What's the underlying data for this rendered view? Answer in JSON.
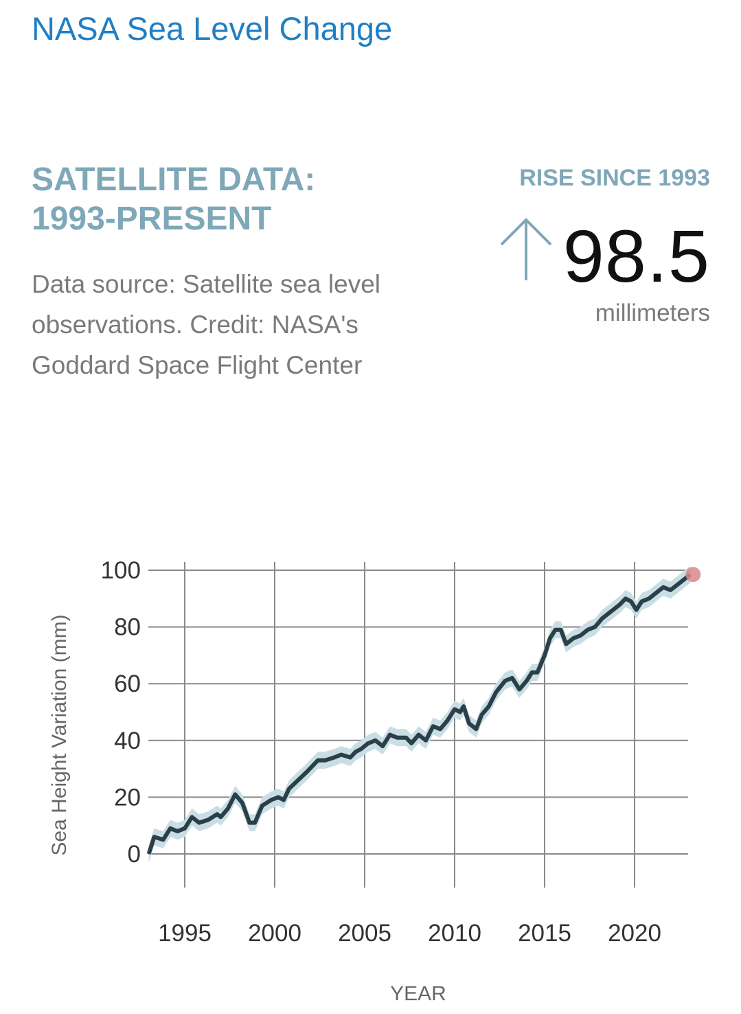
{
  "header": {
    "title": "NASA Sea Level Change"
  },
  "section": {
    "title_line1": "SATELLITE DATA:",
    "title_line2": "1993-PRESENT",
    "description": "Data source: Satellite sea level observations. Credit: NASA's Goddard Space Flight Center"
  },
  "rise": {
    "label": "RISE SINCE 1993",
    "value": "98.5",
    "unit": "millimeters",
    "icon": "arrow-up-icon"
  },
  "colors": {
    "title": "#1f7fc5",
    "accent": "#7ea8b7",
    "line": "#2a3f47",
    "band": "#c9dde5",
    "marker": "#d9868a"
  },
  "chart_data": {
    "type": "line",
    "xlabel": "YEAR",
    "ylabel": "Sea Height Variation (mm)",
    "xlim": [
      1993,
      2023.1
    ],
    "ylim": [
      0,
      100
    ],
    "xticks": [
      1995,
      2000,
      2005,
      2010,
      2015,
      2020
    ],
    "yticks": [
      0,
      20,
      40,
      60,
      80,
      100
    ],
    "grid": true,
    "uncertainty_mm": 3,
    "series": [
      {
        "name": "Sea Height Variation",
        "x": [
          1993.0,
          1993.3,
          1993.8,
          1994.2,
          1994.6,
          1995.0,
          1995.4,
          1995.8,
          1996.3,
          1996.8,
          1997.0,
          1997.4,
          1997.8,
          1998.2,
          1998.6,
          1998.9,
          1999.3,
          1999.8,
          2000.2,
          2000.5,
          2000.8,
          2001.3,
          2001.8,
          2002.4,
          2002.8,
          2003.3,
          2003.7,
          2004.2,
          2004.5,
          2004.8,
          2005.2,
          2005.6,
          2006.0,
          2006.4,
          2006.8,
          2007.3,
          2007.6,
          2008.0,
          2008.4,
          2008.8,
          2009.2,
          2009.6,
          2010.0,
          2010.3,
          2010.5,
          2010.8,
          2011.2,
          2011.5,
          2011.9,
          2012.3,
          2012.8,
          2013.2,
          2013.6,
          2014.0,
          2014.3,
          2014.6,
          2015.0,
          2015.3,
          2015.6,
          2015.9,
          2016.2,
          2016.6,
          2017.0,
          2017.4,
          2017.8,
          2018.2,
          2018.6,
          2019.2,
          2019.5,
          2019.8,
          2020.1,
          2020.4,
          2020.8,
          2021.2,
          2021.6,
          2022.0,
          2022.4,
          2022.8,
          2023.1
        ],
        "y": [
          0,
          6,
          5,
          9,
          8,
          9,
          13,
          11,
          12,
          14,
          13,
          16,
          21,
          18,
          11,
          11,
          17,
          19,
          20,
          19,
          23,
          26,
          29,
          33,
          33,
          34,
          35,
          34,
          36,
          37,
          39,
          40,
          38,
          42,
          41,
          41,
          39,
          42,
          40,
          45,
          44,
          47,
          51,
          50,
          52,
          46,
          44,
          49,
          52,
          57,
          61,
          62,
          58,
          61,
          64,
          64,
          70,
          76,
          79,
          79,
          74,
          76,
          77,
          79,
          80,
          83,
          85,
          88,
          90,
          89,
          86,
          89,
          90,
          92,
          94,
          93,
          95,
          97,
          98.5
        ]
      }
    ],
    "latest_marker": {
      "x": 2023.1,
      "y": 98.5
    }
  }
}
